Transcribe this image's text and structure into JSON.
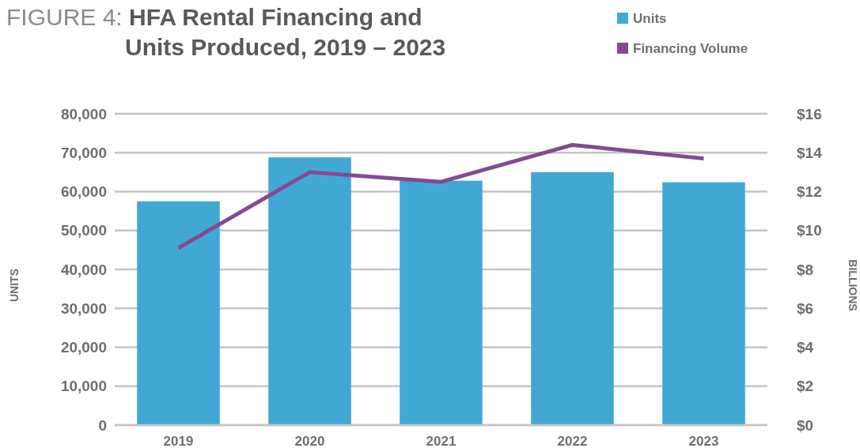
{
  "chart_data": {
    "type": "bar",
    "title": "FIGURE 4: HFA Rental Financing and Units Produced, 2019 – 2023",
    "ylabel": "UNITS",
    "y2label": "BILLIONS",
    "categories": [
      "2019",
      "2020",
      "2021",
      "2022",
      "2023"
    ],
    "series": [
      {
        "name": "Units",
        "color": "#41a8d6",
        "values": [
          57500,
          68800,
          62800,
          65000,
          62400
        ]
      },
      {
        "name": "Financing Volume",
        "type": "line",
        "axis": "y2",
        "color": "#834a92",
        "values": [
          9.1,
          13.0,
          12.5,
          14.4,
          13.7
        ]
      }
    ],
    "ylim": [
      0,
      80000
    ],
    "yticks": [
      0,
      {
        "value": 10000,
        "label": "10,000"
      },
      {
        "value": 20000,
        "label": "20,000"
      },
      {
        "value": 30000,
        "label": "30,000"
      },
      {
        "value": 40000,
        "label": "40,000"
      },
      {
        "value": 50000,
        "label": "50,000"
      },
      {
        "value": 60000,
        "label": "60,000"
      },
      {
        "value": 70000,
        "label": "70,000"
      },
      {
        "value": 80000,
        "label": "80,000"
      }
    ],
    "y2lim": [
      0,
      16
    ],
    "y2ticks": [
      {
        "value": 0,
        "label": "$0"
      },
      {
        "value": 2,
        "label": "$2"
      },
      {
        "value": 4,
        "label": "$4"
      },
      {
        "value": 6,
        "label": "$6"
      },
      {
        "value": 8,
        "label": "$8"
      },
      {
        "value": 10,
        "label": "$10"
      },
      {
        "value": 12,
        "label": "$12"
      },
      {
        "value": 14,
        "label": "$14"
      },
      {
        "value": 16,
        "label": "$16"
      }
    ],
    "grid": "y",
    "legend": "top right"
  }
}
